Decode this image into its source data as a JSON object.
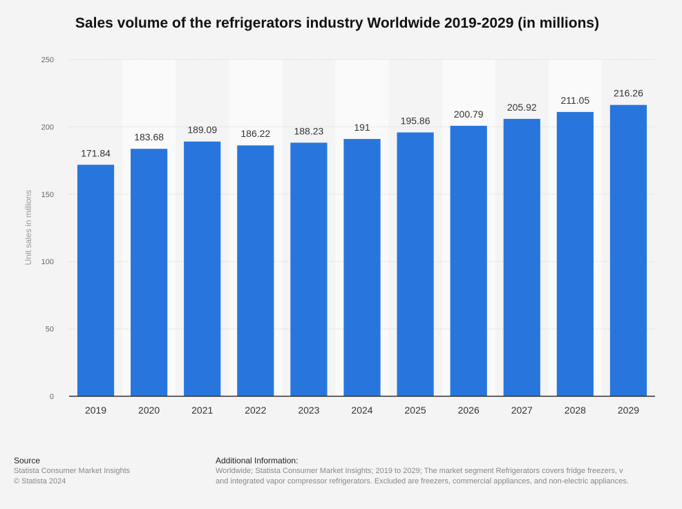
{
  "chart_data": {
    "type": "bar",
    "title": "Sales volume of the refrigerators industry Worldwide 2019-2029 (in millions)",
    "xlabel": "",
    "ylabel": "Unit sales in millions",
    "categories": [
      "2019",
      "2020",
      "2021",
      "2022",
      "2023",
      "2024",
      "2025",
      "2026",
      "2027",
      "2028",
      "2029"
    ],
    "values": [
      171.84,
      183.68,
      189.09,
      186.22,
      188.23,
      191,
      195.86,
      200.79,
      205.92,
      211.05,
      216.26
    ],
    "value_labels": [
      "171.84",
      "183.68",
      "189.09",
      "186.22",
      "188.23",
      "191",
      "195.86",
      "200.79",
      "205.92",
      "211.05",
      "216.26"
    ],
    "ylim": [
      0,
      250
    ],
    "yticks": [
      "0",
      "50",
      "100",
      "150",
      "200",
      "250"
    ],
    "grid": true,
    "legend": "none",
    "bar_color": "#2876dd",
    "alt_band_color": "#fafafa"
  },
  "footer": {
    "source_heading": "Source",
    "source_lines": [
      "Statista Consumer Market Insights",
      "© Statista 2024"
    ],
    "info_heading": "Additional Information:",
    "info_lines": [
      "Worldwide; Statista Consumer Market Insights; 2019 to 2029; The market segment Refrigerators covers fridge freezers, v",
      "and integrated vapor compressor refrigerators. Excluded are freezers, commercial appliances, and non-electric appliances."
    ]
  }
}
